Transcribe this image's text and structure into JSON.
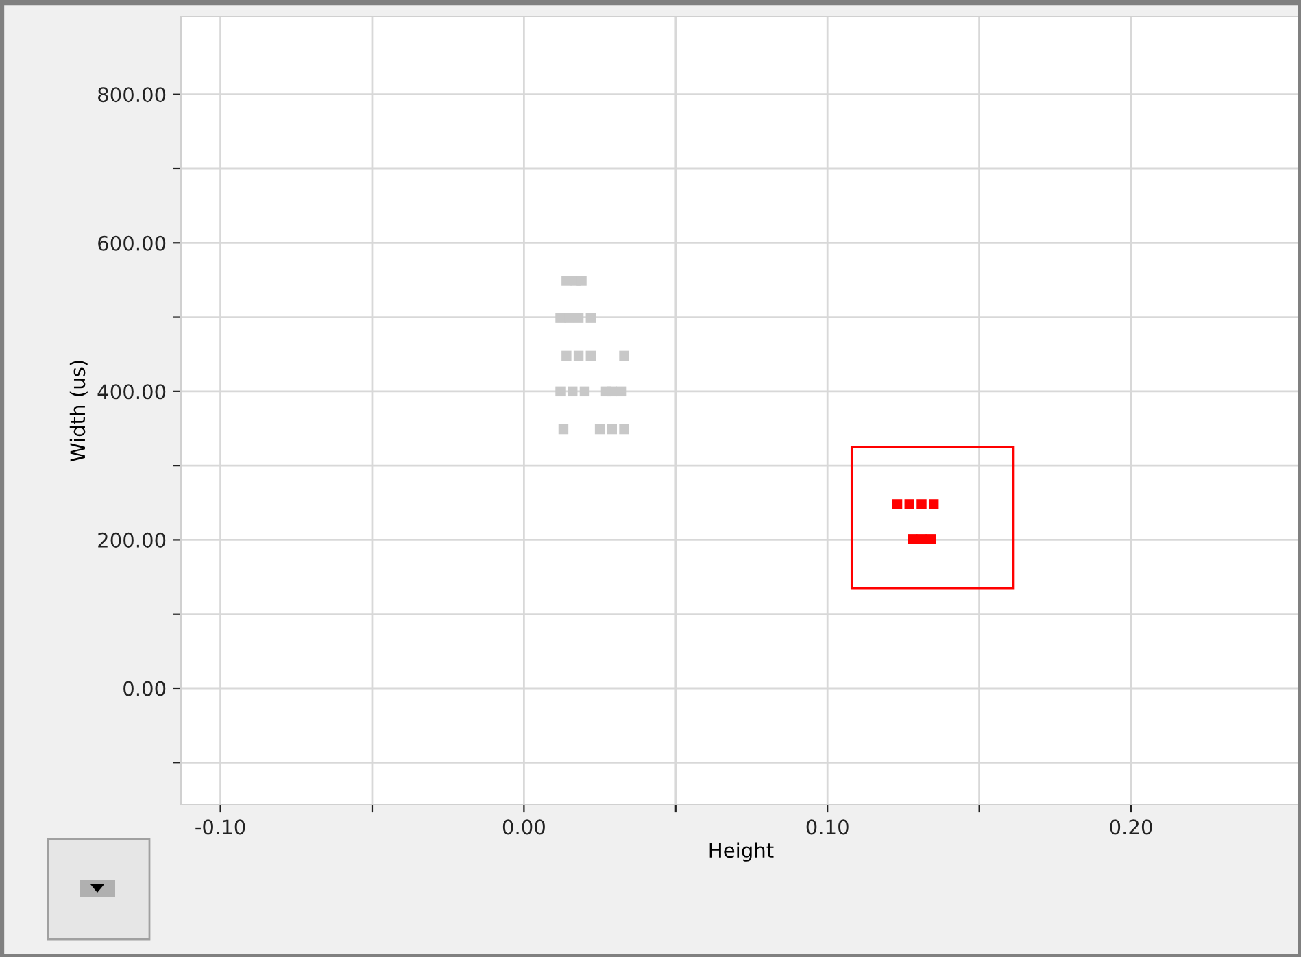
{
  "chart_data": {
    "type": "scatter",
    "xlabel": "Height",
    "ylabel": "Width (us)",
    "marker": "square",
    "grid": true,
    "xlim": [
      -0.113,
      0.256
    ],
    "ylim": [
      -157,
      905
    ],
    "xticks": [
      {
        "value": -0.1,
        "label": "-0.10"
      },
      {
        "value": -0.05,
        "label": null
      },
      {
        "value": 0,
        "label": "0.00"
      },
      {
        "value": 0.05,
        "label": null
      },
      {
        "value": 0.1,
        "label": "0.10"
      },
      {
        "value": 0.15,
        "label": null
      },
      {
        "value": 0.2,
        "label": "0.20"
      }
    ],
    "yticks": [
      {
        "value": -100,
        "label": null
      },
      {
        "value": 0,
        "label": "0.00"
      },
      {
        "value": 100,
        "label": null
      },
      {
        "value": 200,
        "label": "200.00"
      },
      {
        "value": 300,
        "label": null
      },
      {
        "value": 400,
        "label": "400.00"
      },
      {
        "value": 500,
        "label": null
      },
      {
        "value": 600,
        "label": "600.00"
      },
      {
        "value": 700,
        "label": null
      },
      {
        "value": 800,
        "label": "800.00"
      }
    ],
    "series": [
      {
        "color": "#c8c8c8",
        "x": [
          0.014,
          0.017,
          0.019,
          0.012,
          0.015,
          0.018,
          0.022,
          0.014,
          0.018,
          0.022,
          0.033,
          0.012,
          0.016,
          0.02,
          0.027,
          0.029,
          0.032,
          0.013,
          0.025,
          0.029,
          0.033
        ],
        "values": [
          549,
          549,
          549,
          499,
          499,
          499,
          499,
          448,
          448,
          448,
          448,
          400,
          400,
          400,
          400,
          400,
          400,
          349,
          349,
          349,
          349
        ]
      },
      {
        "color": "#ff0000",
        "x": [
          0.123,
          0.127,
          0.131,
          0.135,
          0.128,
          0.131,
          0.134
        ],
        "values": [
          248,
          248,
          248,
          248,
          201,
          201,
          201
        ]
      }
    ]
  }
}
